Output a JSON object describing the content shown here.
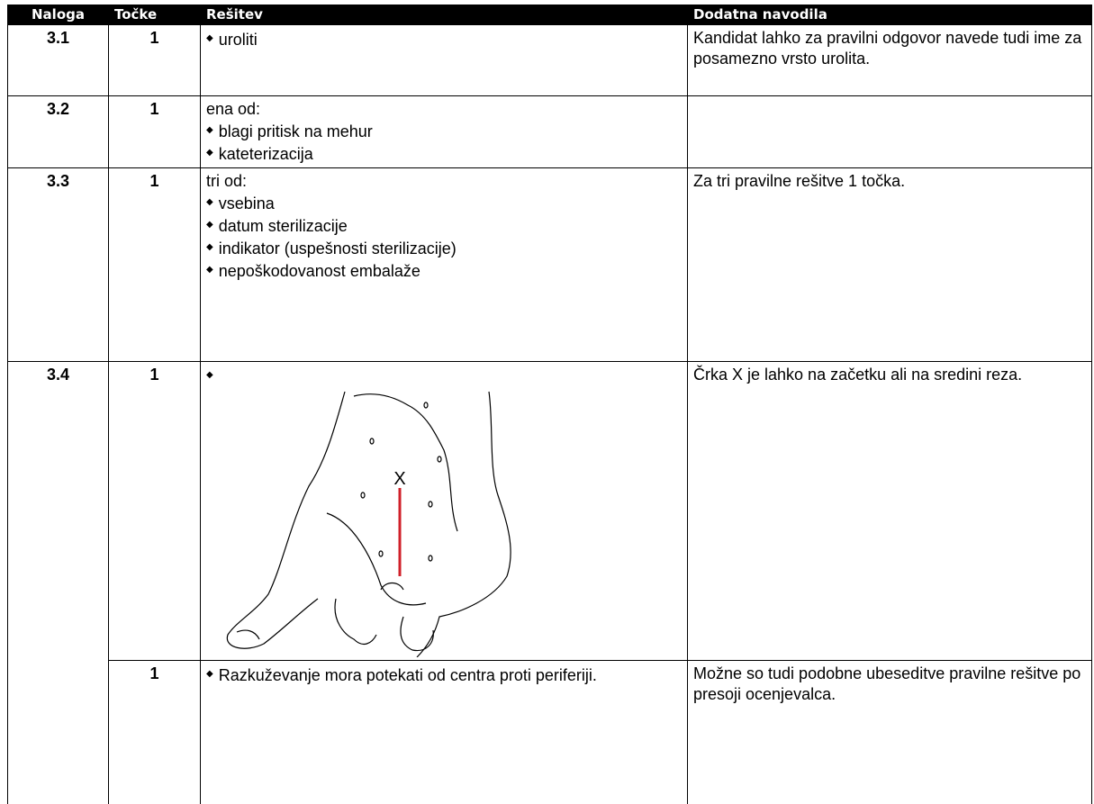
{
  "table": {
    "header": [
      "Naloga",
      "Točke",
      "Rešitev",
      "Dodatna navodila"
    ],
    "rows": [
      {
        "task": "3.1",
        "points": 1,
        "solution": {
          "items": [
            "uroliti"
          ]
        },
        "notes": "Kandidat lahko za pravilni odgovor navede tudi ime za posamezno vrsto urolita."
      },
      {
        "task": "3.2",
        "points": 1,
        "solution": {
          "intro": "ena od:",
          "items": [
            "blagi pritisk na mehur",
            "kateterizacija"
          ]
        }
      },
      {
        "task": "3.3",
        "points": 1,
        "solution": {
          "intro": "tri od:",
          "items": [
            "vsebina",
            "datum sterilizacije",
            "indikator (uspešnosti sterilizacije)",
            "nepoškodovanost embalaže"
          ]
        },
        "notes": "Za tri pravilne rešitve 1 točka."
      },
      {
        "task": "3.4",
        "points": 1,
        "solution": {
          "figure_label": "X"
        },
        "notes": "Črka X je lahko na začetku ali na sredini reza."
      },
      {
        "points": 1,
        "solution": {
          "items": [
            "Razkuževanje mora potekati od centra proti periferiji."
          ]
        },
        "notes": "Možne so tudi podobne ubeseditve pravilne rešitve po presoji ocenjevalca."
      }
    ]
  }
}
